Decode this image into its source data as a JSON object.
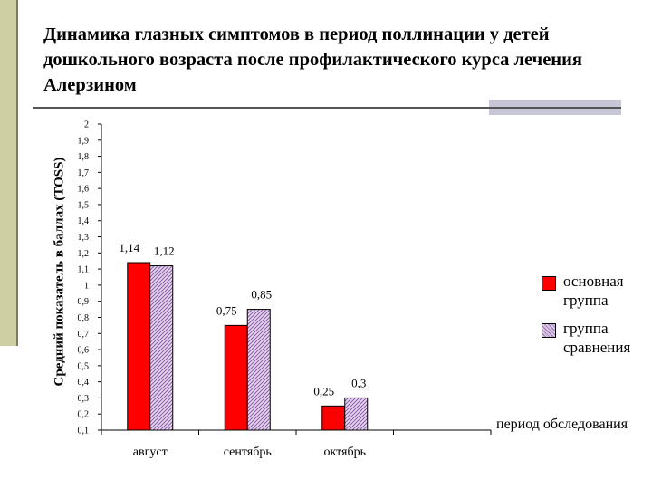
{
  "slide": {
    "title": "Динамика глазных симптомов в период поллинации у детей дошкольного возраста после профилактического курса лечения Алерзином"
  },
  "chart_data": {
    "type": "bar",
    "ylabel": "Средний показатель в баллах (TOSS)",
    "xlabel": "период обследования",
    "categories": [
      "август",
      "сентябрь",
      "октябрь",
      ""
    ],
    "series": [
      {
        "name": "основная группа",
        "values": [
          1.14,
          0.75,
          0.25,
          null
        ],
        "labels": [
          "1,14",
          "0,75",
          "0,25",
          ""
        ],
        "color": "#ff0000"
      },
      {
        "name": "группа сравнения",
        "values": [
          1.12,
          0.85,
          0.3,
          null
        ],
        "labels": [
          "1,12",
          "0,85",
          "0,3",
          ""
        ],
        "color": "#b494c8"
      }
    ],
    "ylim": [
      0.1,
      2
    ],
    "yticks": [
      "0,1",
      "0,2",
      "0,3",
      "0,4",
      "0,5",
      "0,6",
      "0,7",
      "0,8",
      "0,9",
      "1",
      "1,1",
      "1,2",
      "1,3",
      "1,4",
      "1,5",
      "1,6",
      "1,7",
      "1,8",
      "1,9",
      "2"
    ],
    "grid": false,
    "legend_position": "right"
  }
}
